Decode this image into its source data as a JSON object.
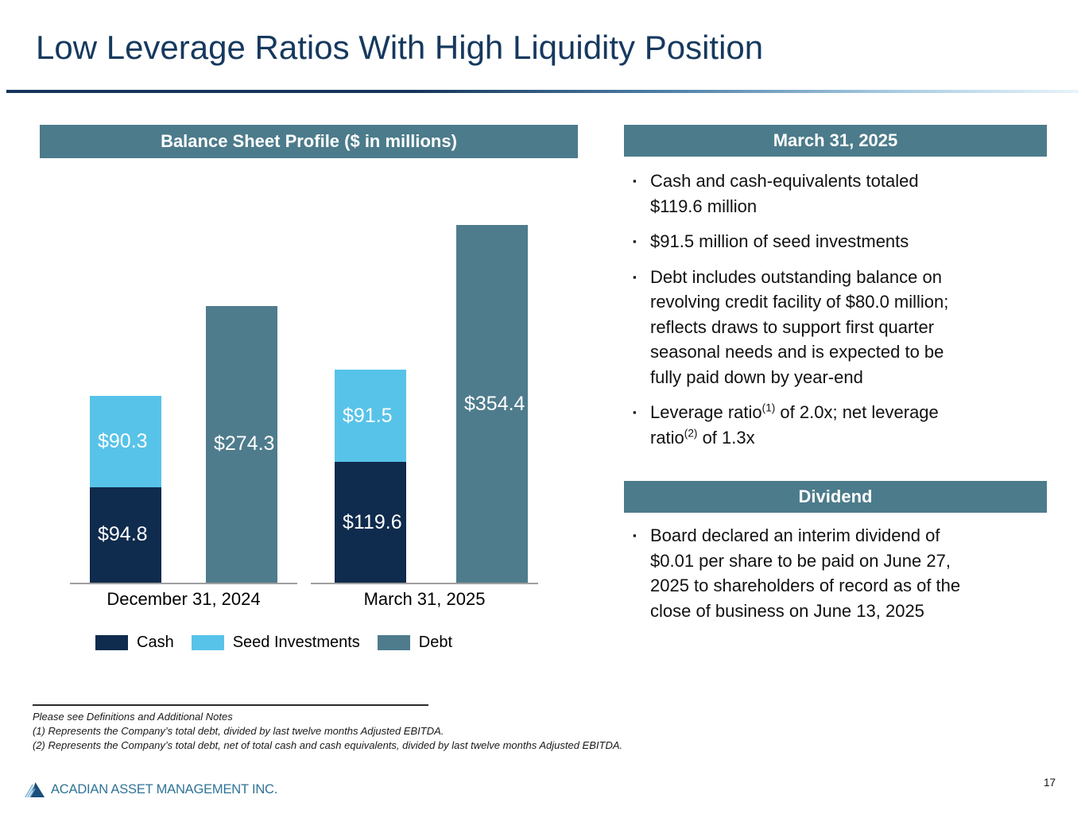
{
  "title": "Low Leverage Ratios With High Liquidity Position",
  "colors": {
    "header_bar": "#4C7B8B",
    "title_navy": "#16395E",
    "cash_navy": "#0F2B4D",
    "seed_light_blue": "#58C3E8",
    "debt_teal": "#4E7C8C",
    "logo_blue": "#2F7396"
  },
  "chart": {
    "header": "Balance Sheet Profile ($ in millions)",
    "legend": [
      {
        "label": "Cash",
        "color": "#0F2B4D"
      },
      {
        "label": "Seed Investments",
        "color": "#58C3E8"
      },
      {
        "label": "Debt",
        "color": "#4E7C8C"
      }
    ]
  },
  "chart_data": {
    "type": "bar",
    "title": "Balance Sheet Profile ($ in millions)",
    "xlabel": "",
    "ylabel": "$ in millions",
    "ylim": [
      0,
      370
    ],
    "grid": false,
    "legend_position": "bottom",
    "categories": [
      "December 31, 2024",
      "March 31, 2025"
    ],
    "series": [
      {
        "name": "Cash",
        "color": "#0F2B4D",
        "stack": "cash-and-seed",
        "values": [
          94.8,
          119.6
        ]
      },
      {
        "name": "Seed Investments",
        "color": "#58C3E8",
        "stack": "cash-and-seed",
        "values": [
          90.3,
          91.5
        ]
      },
      {
        "name": "Debt",
        "color": "#4E7C8C",
        "stack": "debt",
        "values": [
          274.3,
          354.4
        ]
      }
    ],
    "value_labels": [
      [
        "$94.8",
        "$90.3",
        "$274.3"
      ],
      [
        "$119.6",
        "$91.5",
        "$354.4"
      ]
    ]
  },
  "right_panel": {
    "sections": [
      {
        "header": "March 31, 2025",
        "bullets": [
          {
            "segments": [
              {
                "text": "Cash and cash-equivalents totaled $119.6 million"
              }
            ]
          },
          {
            "segments": [
              {
                "text": "$91.5 million of seed investments"
              }
            ]
          },
          {
            "segments": [
              {
                "text": "Debt includes outstanding balance on revolving credit facility of $80.0 million; reflects draws to support first quarter seasonal needs and is expected to be fully paid down by year-end"
              }
            ]
          },
          {
            "segments": [
              {
                "text": "Leverage ratio"
              },
              {
                "text": "(1)",
                "sup": true
              },
              {
                "text": " of 2.0x; net leverage ratio"
              },
              {
                "text": "(2)",
                "sup": true
              },
              {
                "text": " of 1.3x"
              }
            ]
          }
        ]
      },
      {
        "header": "Dividend",
        "bullets": [
          {
            "segments": [
              {
                "text": "Board declared an interim dividend of $0.01 per share to be paid on June 27, 2025 to shareholders of record as of the close of business on June 13, 2025"
              }
            ]
          }
        ]
      }
    ]
  },
  "footnotes": {
    "lines": [
      "Please see Definitions and Additional Notes",
      "(1) Represents the Company’s total debt, divided by last twelve months Adjusted EBITDA.",
      "(2) Represents the Company’s total debt, net of total cash and cash equivalents, divided by last twelve months Adjusted EBITDA."
    ]
  },
  "footer": {
    "logo_text": "ACADIAN ASSET MANAGEMENT INC.",
    "page_number": "17"
  }
}
